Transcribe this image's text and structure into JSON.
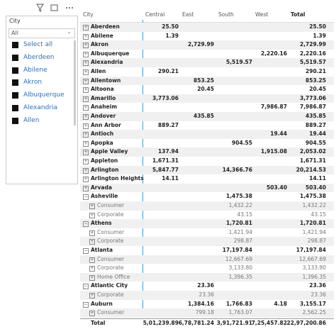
{
  "slicer": {
    "title": "City",
    "search": "All",
    "items": [
      "Select all",
      "Aberdeen",
      "Abilene",
      "Akron",
      "Albuquerque",
      "Alexandria",
      "Allen"
    ]
  },
  "matrix": {
    "headers": [
      "City",
      "Central",
      "East",
      "South",
      "West",
      "Total"
    ],
    "rows": [
      {
        "label": "Aberdeen",
        "level": 0,
        "expanded": false,
        "values": [
          "25.50",
          null,
          null,
          null,
          "25.50"
        ]
      },
      {
        "label": "Abilene",
        "level": 0,
        "expanded": false,
        "values": [
          "1.39",
          null,
          null,
          null,
          "1.39"
        ]
      },
      {
        "label": "Akron",
        "level": 0,
        "expanded": false,
        "values": [
          null,
          "2,729.99",
          null,
          null,
          "2,729.99"
        ]
      },
      {
        "label": "Albuquerque",
        "level": 0,
        "expanded": false,
        "values": [
          null,
          null,
          null,
          "2,220.16",
          "2,220.16"
        ]
      },
      {
        "label": "Alexandria",
        "level": 0,
        "expanded": false,
        "values": [
          null,
          null,
          "5,519.57",
          null,
          "5,519.57"
        ]
      },
      {
        "label": "Allen",
        "level": 0,
        "expanded": false,
        "values": [
          "290.21",
          null,
          null,
          null,
          "290.21"
        ]
      },
      {
        "label": "Allentown",
        "level": 0,
        "expanded": false,
        "values": [
          null,
          "853.25",
          null,
          null,
          "853.25"
        ]
      },
      {
        "label": "Altoona",
        "level": 0,
        "expanded": false,
        "values": [
          null,
          "20.45",
          null,
          null,
          "20.45"
        ]
      },
      {
        "label": "Amarillo",
        "level": 0,
        "expanded": false,
        "values": [
          "3,773.06",
          null,
          null,
          null,
          "3,773.06"
        ]
      },
      {
        "label": "Anaheim",
        "level": 0,
        "expanded": false,
        "values": [
          null,
          null,
          null,
          "7,986.87",
          "7,986.87"
        ]
      },
      {
        "label": "Andover",
        "level": 0,
        "expanded": false,
        "values": [
          null,
          "435.85",
          null,
          null,
          "435.85"
        ]
      },
      {
        "label": "Ann Arbor",
        "level": 0,
        "expanded": false,
        "values": [
          "889.27",
          null,
          null,
          null,
          "889.27"
        ]
      },
      {
        "label": "Antioch",
        "level": 0,
        "expanded": false,
        "values": [
          null,
          null,
          null,
          "19.44",
          "19.44"
        ]
      },
      {
        "label": "Apopka",
        "level": 0,
        "expanded": false,
        "values": [
          null,
          null,
          "904.55",
          null,
          "904.55"
        ]
      },
      {
        "label": "Apple Valley",
        "level": 0,
        "expanded": false,
        "values": [
          "137.94",
          null,
          null,
          "1,915.08",
          "2,053.02"
        ]
      },
      {
        "label": "Appleton",
        "level": 0,
        "expanded": false,
        "values": [
          "1,671.31",
          null,
          null,
          null,
          "1,671.31"
        ]
      },
      {
        "label": "Arlington",
        "level": 0,
        "expanded": false,
        "values": [
          "5,847.77",
          null,
          "14,366.76",
          null,
          "20,214.53"
        ]
      },
      {
        "label": "Arlington Heights",
        "level": 0,
        "expanded": false,
        "values": [
          "14.11",
          null,
          null,
          null,
          "14.11"
        ]
      },
      {
        "label": "Arvada",
        "level": 0,
        "expanded": false,
        "values": [
          null,
          null,
          null,
          "503.40",
          "503.40"
        ]
      },
      {
        "label": "Asheville",
        "level": 0,
        "expanded": true,
        "values": [
          null,
          null,
          "1,475.38",
          null,
          "1,475.38"
        ]
      },
      {
        "label": "Consumer",
        "level": 1,
        "expanded": false,
        "values": [
          null,
          null,
          "1,432.22",
          null,
          "1,432.22"
        ]
      },
      {
        "label": "Corporate",
        "level": 1,
        "expanded": false,
        "values": [
          null,
          null,
          "43.15",
          null,
          "43.15"
        ]
      },
      {
        "label": "Athens",
        "level": 0,
        "expanded": true,
        "values": [
          null,
          null,
          "1,720.81",
          null,
          "1,720.81"
        ]
      },
      {
        "label": "Consumer",
        "level": 1,
        "expanded": false,
        "values": [
          null,
          null,
          "1,421.94",
          null,
          "1,421.94"
        ]
      },
      {
        "label": "Corporate",
        "level": 1,
        "expanded": false,
        "values": [
          null,
          null,
          "298.87",
          null,
          "298.87"
        ]
      },
      {
        "label": "Atlanta",
        "level": 0,
        "expanded": true,
        "values": [
          null,
          null,
          "17,197.84",
          null,
          "17,197.84"
        ]
      },
      {
        "label": "Consumer",
        "level": 1,
        "expanded": false,
        "values": [
          null,
          null,
          "12,667.69",
          null,
          "12,667.69"
        ]
      },
      {
        "label": "Corporate",
        "level": 1,
        "expanded": false,
        "values": [
          null,
          null,
          "3,133.80",
          null,
          "3,133.80"
        ]
      },
      {
        "label": "Home Office",
        "level": 1,
        "expanded": false,
        "values": [
          null,
          null,
          "1,396.35",
          null,
          "1,396.35"
        ]
      },
      {
        "label": "Atlantic City",
        "level": 0,
        "expanded": true,
        "values": [
          null,
          "23.36",
          null,
          null,
          "23.36"
        ]
      },
      {
        "label": "Corporate",
        "level": 1,
        "expanded": false,
        "values": [
          null,
          "23.36",
          null,
          null,
          "23.36"
        ]
      },
      {
        "label": "Auburn",
        "level": 0,
        "expanded": true,
        "values": [
          null,
          "1,384.16",
          "1,766.83",
          "4.18",
          "3,155.17"
        ]
      },
      {
        "label": "Consumer",
        "level": 1,
        "expanded": false,
        "values": [
          null,
          "799.18",
          "1,763.07",
          null,
          "2,562.25"
        ]
      }
    ],
    "total": {
      "label": "Total",
      "values": [
        "5,01,239.89",
        "6,78,781.24",
        "3,91,721.91",
        "7,25,457.82",
        "22,97,200.86"
      ]
    }
  }
}
